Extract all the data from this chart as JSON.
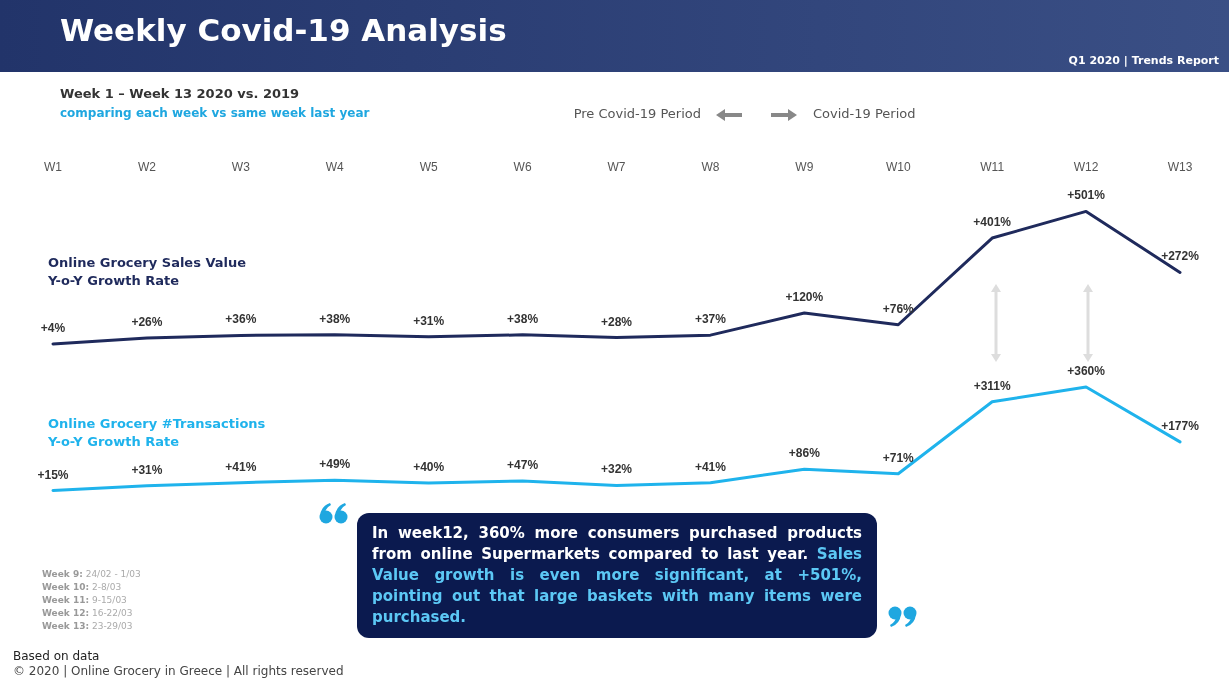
{
  "chart_data": [
    {
      "type": "line",
      "title": "Weekly Covid-19 Analysis",
      "subtitle": "Week 1 – Week 13 2020 vs. 2019",
      "annotations": [
        "Q1 2020 | Trends Report",
        "comparing each week vs same week last year",
        "Pre Covid-19 Period",
        "Covid-19 Period",
        "In week12, 360% more consumers purchased products from online Supermarkets compared to last year.",
        "Sales Value growth is even more significant, at +501%, pointing out that large baskets with many items were purchased.",
        "Week 9: 24/02 - 1/03",
        "Week 10: 2-8/03",
        "Week 11: 9-15/03",
        "Week 12: 16-22/03",
        "Week 13: 23-29/03",
        "Based on data",
        "© 2020 | Online Grocery in Greece | All rights reserved"
      ],
      "categories": [
        "W1",
        "W2",
        "W3",
        "W4",
        "W5",
        "W6",
        "W7",
        "W8",
        "W9",
        "W10",
        "W11",
        "W12",
        "W13"
      ],
      "marker": "none",
      "series": [
        {
          "name": "Online Grocery Sales Value\nY-o-Y Growth Rate",
          "color": "#1f2a5c",
          "values": [
            4,
            26,
            36,
            38,
            31,
            38,
            28,
            37,
            120,
            76,
            401,
            501,
            272
          ],
          "value_labels": [
            "+4%",
            "+26%",
            "+36%",
            "+38%",
            "+31%",
            "+38%",
            "+28%",
            "+37%",
            "+120%",
            "+76%",
            "+401%",
            "+501%",
            "+272%"
          ]
        }
      ]
    },
    {
      "type": "line",
      "categories": [
        null,
        null,
        null,
        null,
        null,
        null,
        null,
        null,
        null,
        null,
        null,
        null,
        null
      ],
      "marker": "none",
      "series": [
        {
          "name": "Online Grocery #Transactions\nY-o-Y Growth Rate",
          "color": "#1fb3ec",
          "values": [
            15,
            31,
            41,
            49,
            40,
            47,
            32,
            41,
            86,
            71,
            311,
            360,
            177
          ],
          "value_labels": [
            "+15%",
            "+31%",
            "+41%",
            "+49%",
            "+40%",
            "+47%",
            "+32%",
            "+41%",
            "+86%",
            "+71%",
            "+311%",
            "+360%",
            "+177%"
          ]
        }
      ]
    }
  ]
}
